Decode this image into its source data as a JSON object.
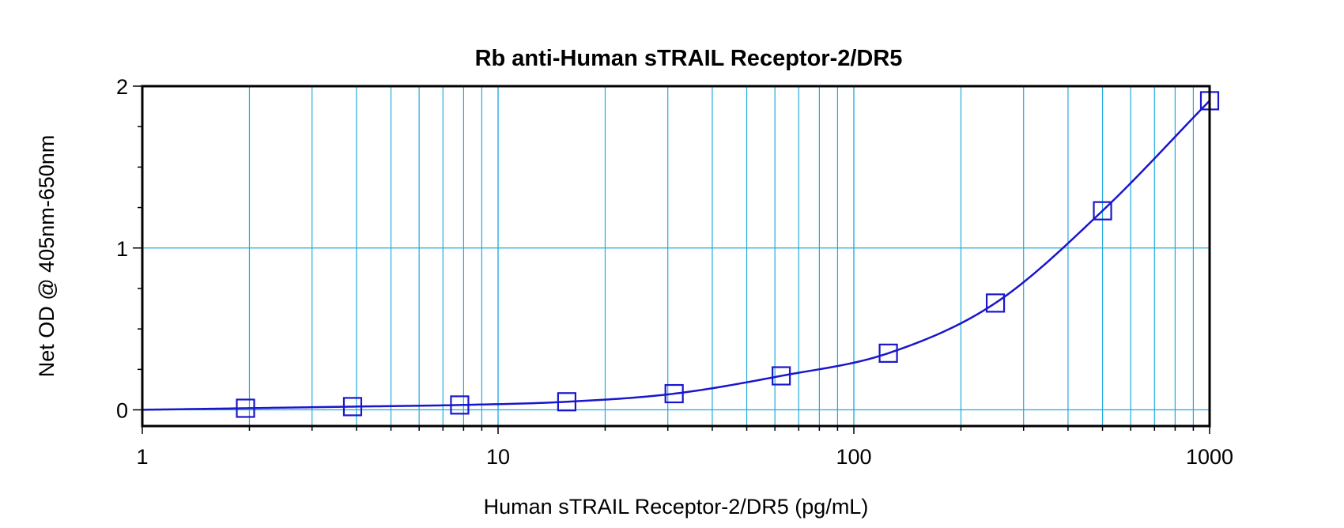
{
  "chart_data": {
    "type": "scatter",
    "title": "Rb anti-Human sTRAIL Receptor-2/DR5",
    "xlabel": "Human sTRAIL Receptor-2/DR5 (pg/mL)",
    "ylabel": "Net OD @ 405nm-650nm",
    "x_scale": "log",
    "xlim": [
      1,
      1000
    ],
    "ylim": [
      -0.1,
      2
    ],
    "x_ticks": [
      1,
      10,
      100,
      1000
    ],
    "x_tick_labels": [
      "1",
      "10",
      "100",
      "1000"
    ],
    "y_ticks": [
      0,
      1,
      2
    ],
    "y_tick_labels": [
      "0",
      "1",
      "2"
    ],
    "grid": true,
    "legend": "none",
    "series": [
      {
        "marker": "open-square",
        "x": [
          1.95,
          3.9,
          7.8,
          15.6,
          31.25,
          62.5,
          125,
          250,
          500,
          1000
        ],
        "y": [
          0.01,
          0.02,
          0.03,
          0.05,
          0.1,
          0.21,
          0.35,
          0.66,
          1.23,
          1.91
        ],
        "fit_line": true
      }
    ],
    "colors": {
      "grid": "#22aadd",
      "series": "#1a16cc",
      "frame": "#000000"
    }
  }
}
